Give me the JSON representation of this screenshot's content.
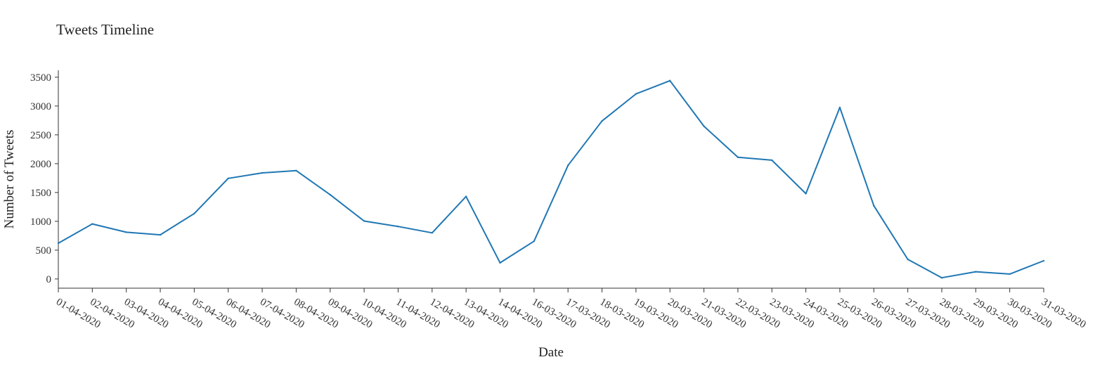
{
  "chart_data": {
    "type": "line",
    "title": "Tweets Timeline",
    "xlabel": "Date",
    "ylabel": "Number of Tweets",
    "categories": [
      "01-04-2020",
      "02-04-2020",
      "03-04-2020",
      "04-04-2020",
      "05-04-2020",
      "06-04-2020",
      "07-04-2020",
      "08-04-2020",
      "09-04-2020",
      "10-04-2020",
      "11-04-2020",
      "12-04-2020",
      "13-04-2020",
      "14-04-2020",
      "16-03-2020",
      "17-03-2020",
      "18-03-2020",
      "19-03-2020",
      "20-03-2020",
      "21-03-2020",
      "22-03-2020",
      "23-03-2020",
      "24-03-2020",
      "25-03-2020",
      "26-03-2020",
      "27-03-2020",
      "28-03-2020",
      "29-03-2020",
      "30-03-2020",
      "31-03-2020"
    ],
    "series": [
      {
        "values": [
          620,
          955,
          810,
          765,
          1135,
          1745,
          1840,
          1880,
          1460,
          1005,
          910,
          800,
          1430,
          280,
          655,
          1970,
          2740,
          3210,
          3440,
          2650,
          2110,
          2060,
          1480,
          2975,
          1270,
          340,
          20,
          125,
          85,
          315
        ],
        "color": "#1f77b4"
      }
    ],
    "yticks": [
      0,
      500,
      1000,
      1500,
      2000,
      2500,
      3000,
      3500
    ],
    "ylim": [
      -160,
      3620
    ],
    "grid": false,
    "legend": "none"
  }
}
